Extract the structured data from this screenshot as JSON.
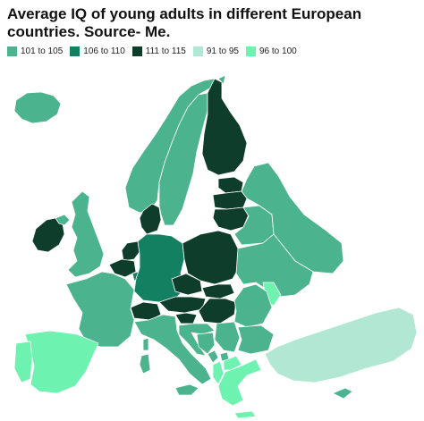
{
  "title": "Average IQ of young adults in different European countries. Source- Me.",
  "legend": [
    {
      "label": "101 to 105",
      "color": "#4cb38f"
    },
    {
      "label": "106 to 110",
      "color": "#138061"
    },
    {
      "label": "111 to 115",
      "color": "#0f3d2b"
    },
    {
      "label": "91 to 95",
      "color": "#b2e8d3"
    },
    {
      "label": "96 to 100",
      "color": "#6ef2b0"
    }
  ],
  "regions": {
    "iceland": "101 to 105",
    "norway": "101 to 105",
    "sweden": "101 to 105",
    "finland": "111 to 115",
    "estonia": "111 to 115",
    "latvia": "111 to 115",
    "lithuania": "111 to 115",
    "denmark": "111 to 115",
    "ireland": "111 to 115",
    "northern-ireland": "101 to 105",
    "great-britain": "101 to 105",
    "netherlands": "111 to 115",
    "belgium": "111 to 115",
    "luxembourg": "106 to 110",
    "germany": "106 to 110",
    "poland": "111 to 115",
    "czechia": "111 to 115",
    "slovakia": "111 to 115",
    "austria": "111 to 115",
    "switzerland": "111 to 115",
    "hungary": "111 to 115",
    "slovenia": "111 to 115",
    "croatia": "101 to 105",
    "france": "101 to 105",
    "spain": "96 to 100",
    "portugal": "96 to 100",
    "italy": "101 to 105",
    "belarus": "101 to 105",
    "russia": "101 to 105",
    "ukraine": "101 to 105",
    "moldova": "96 to 100",
    "romania": "101 to 105",
    "bulgaria": "101 to 105",
    "serbia": "101 to 105",
    "bosnia": "101 to 105",
    "montenegro": "101 to 105",
    "kosovo": "101 to 105",
    "albania": "96 to 100",
    "north-macedonia": "96 to 100",
    "greece": "96 to 100",
    "turkey": "91 to 95",
    "cyprus": "101 to 105"
  }
}
